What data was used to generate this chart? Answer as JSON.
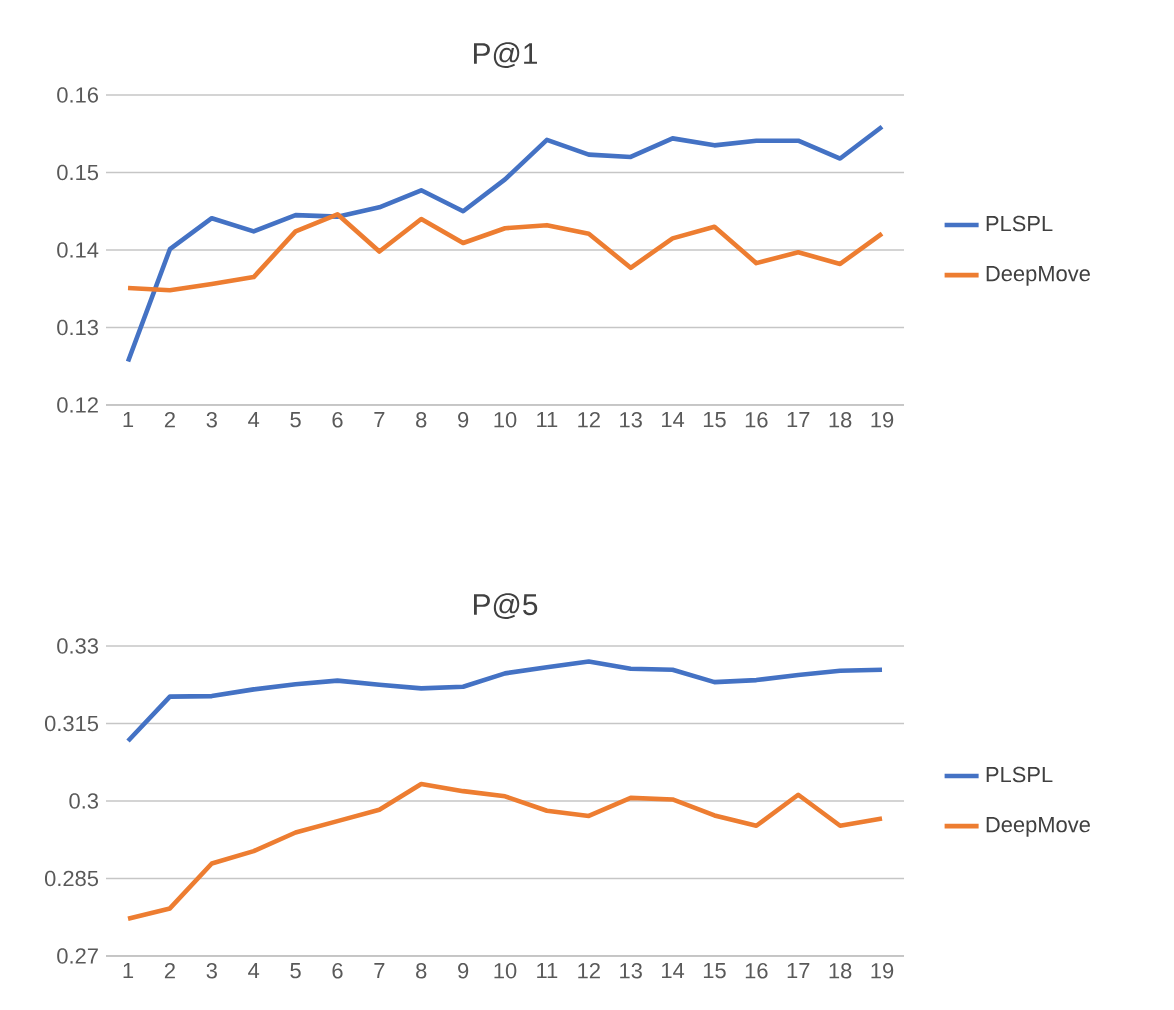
{
  "chart_data": [
    {
      "type": "line",
      "title": "P@1",
      "categories": [
        "1",
        "2",
        "3",
        "4",
        "5",
        "6",
        "7",
        "8",
        "9",
        "10",
        "11",
        "12",
        "13",
        "14",
        "15",
        "16",
        "17",
        "18",
        "19"
      ],
      "series": [
        {
          "name": "PLSPL",
          "color": "#4472c4",
          "values": [
            0.1256,
            0.1401,
            0.1441,
            0.1424,
            0.1445,
            0.1443,
            0.1455,
            0.1477,
            0.145,
            0.1491,
            0.1542,
            0.1523,
            0.152,
            0.1544,
            0.1535,
            0.1541,
            0.1541,
            0.1518,
            0.1559
          ]
        },
        {
          "name": "DeepMove",
          "color": "#ed7d31",
          "values": [
            0.1351,
            0.1348,
            0.1356,
            0.1365,
            0.1424,
            0.1446,
            0.1398,
            0.144,
            0.1409,
            0.1428,
            0.1432,
            0.1421,
            0.1377,
            0.1415,
            0.143,
            0.1383,
            0.1397,
            0.1382,
            0.1421
          ]
        }
      ],
      "ylim": [
        0.12,
        0.16
      ],
      "yticks": [
        0.12,
        0.13,
        0.14,
        0.15,
        0.16
      ],
      "grid": "y",
      "legend": "right",
      "marker": "none",
      "line_style": "solid"
    },
    {
      "type": "line",
      "title": "P@5",
      "categories": [
        "1",
        "2",
        "3",
        "4",
        "5",
        "6",
        "7",
        "8",
        "9",
        "10",
        "11",
        "12",
        "13",
        "14",
        "15",
        "16",
        "17",
        "18",
        "19"
      ],
      "series": [
        {
          "name": "PLSPL",
          "color": "#4472c4",
          "values": [
            0.3116,
            0.3202,
            0.3203,
            0.3216,
            0.3226,
            0.3233,
            0.3225,
            0.3218,
            0.3221,
            0.3247,
            0.3259,
            0.327,
            0.3256,
            0.3254,
            0.323,
            0.3234,
            0.3244,
            0.3252,
            0.3254
          ]
        },
        {
          "name": "DeepMove",
          "color": "#ed7d31",
          "values": [
            0.2772,
            0.2792,
            0.2879,
            0.2903,
            0.2939,
            0.2961,
            0.2983,
            0.3033,
            0.3019,
            0.3009,
            0.2981,
            0.2971,
            0.3006,
            0.3003,
            0.2972,
            0.2952,
            0.3012,
            0.2952,
            0.2966
          ]
        }
      ],
      "ylim": [
        0.27,
        0.33
      ],
      "yticks": [
        0.27,
        0.285,
        0.3,
        0.315,
        0.33
      ],
      "grid": "y",
      "legend": "right",
      "marker": "none",
      "line_style": "solid"
    }
  ]
}
